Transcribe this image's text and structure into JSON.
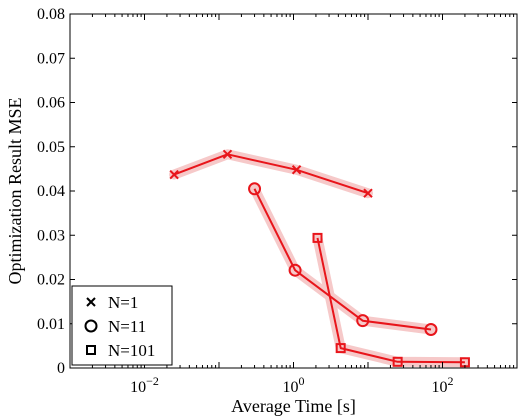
{
  "chart_data": {
    "type": "line",
    "xlabel": "Average Time [s]",
    "ylabel": "Optimization Result MSE",
    "xscale": "log",
    "xlim": [
      0.001,
      1000
    ],
    "ylim": [
      0,
      0.08
    ],
    "x_ticks": [
      {
        "value": 0.01,
        "base": "10",
        "exp": "−2"
      },
      {
        "value": 1,
        "base": "10",
        "exp": "0"
      },
      {
        "value": 100,
        "base": "10",
        "exp": "2"
      }
    ],
    "y_ticks": [
      "0",
      "0.01",
      "0.02",
      "0.03",
      "0.04",
      "0.05",
      "0.06",
      "0.07",
      "0.08"
    ],
    "grid": false,
    "legend_position": "bottom-left",
    "line_color": "#e8151b",
    "band_color": "#f6c9c9",
    "series": [
      {
        "name": "N=1",
        "marker": "x",
        "x": [
          0.025,
          0.13,
          1.1,
          10
        ],
        "y": [
          0.0437,
          0.0483,
          0.0448,
          0.0395
        ]
      },
      {
        "name": "N=11",
        "marker": "o",
        "x": [
          0.3,
          1.05,
          8.5,
          70
        ],
        "y": [
          0.0405,
          0.0221,
          0.0107,
          0.0087
        ]
      },
      {
        "name": "N=101",
        "marker": "s",
        "x": [
          2.1,
          4.3,
          25,
          200
        ],
        "y": [
          0.0294,
          0.0045,
          0.0014,
          0.0013
        ]
      }
    ]
  }
}
